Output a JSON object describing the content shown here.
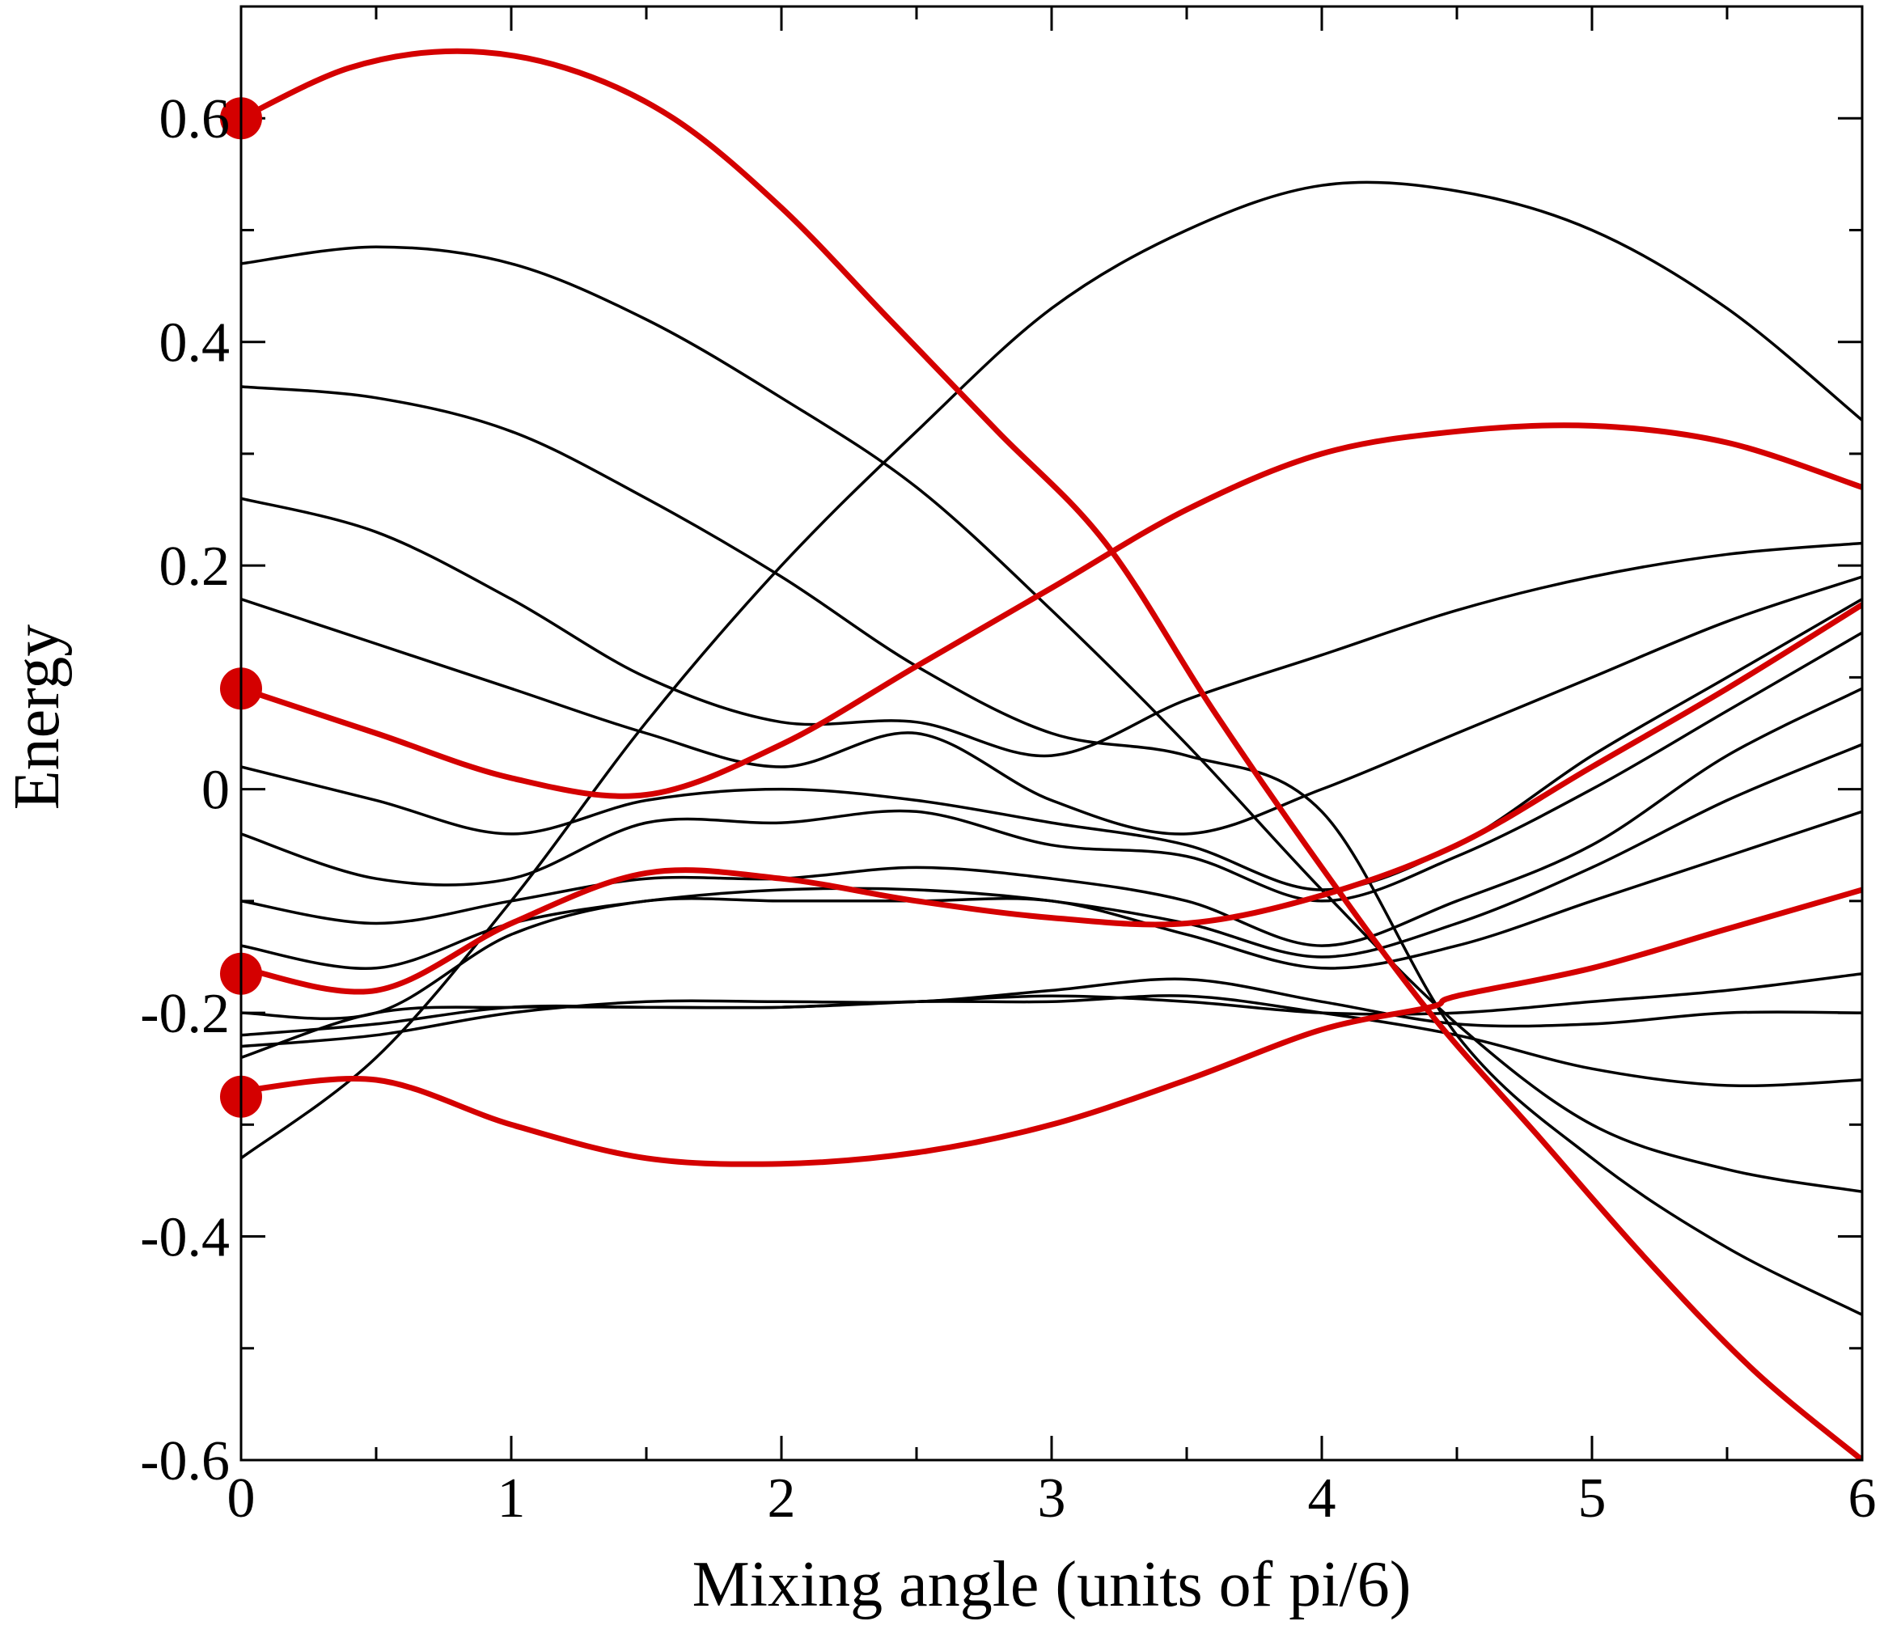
{
  "chart_data": {
    "type": "line",
    "xlabel": "Mixing angle (units of pi/6)",
    "ylabel": "Energy",
    "xlim": [
      0,
      6
    ],
    "ylim": [
      -0.6,
      0.7
    ],
    "x_ticks": [
      0,
      1,
      2,
      3,
      4,
      5,
      6
    ],
    "x_tick_labels": [
      "0",
      "1",
      "2",
      "3",
      "4",
      "5",
      "6"
    ],
    "y_ticks": [
      -0.6,
      -0.4,
      -0.2,
      0,
      0.2,
      0.4,
      0.6
    ],
    "y_tick_labels": [
      "-0.6",
      "-0.4",
      "-0.2",
      "0",
      "0.2",
      "0.4",
      "0.6"
    ],
    "grid": false,
    "colors": {
      "highlight": "#d40000",
      "other": "#000000"
    },
    "highlighted_series": [
      {
        "x": [
          0,
          0.4,
          0.8,
          1.2,
          1.6,
          2.0,
          2.4,
          2.8,
          3.2,
          3.6,
          4.0,
          4.4,
          4.8,
          5.2,
          5.6,
          6.0
        ],
        "y": [
          0.6,
          0.645,
          0.66,
          0.645,
          0.6,
          0.52,
          0.42,
          0.32,
          0.22,
          0.07,
          -0.07,
          -0.2,
          -0.31,
          -0.42,
          -0.52,
          -0.6
        ]
      },
      {
        "x": [
          0,
          0.5,
          1.0,
          1.5,
          2.0,
          2.5,
          3.0,
          3.5,
          4.0,
          4.5,
          5.0,
          5.5,
          6.0
        ],
        "y": [
          0.09,
          0.05,
          0.01,
          -0.005,
          0.04,
          0.11,
          0.18,
          0.25,
          0.3,
          0.32,
          0.325,
          0.31,
          0.27
        ]
      },
      {
        "x": [
          0,
          0.5,
          1.0,
          1.5,
          2.0,
          2.5,
          3.0,
          3.5,
          4.0,
          4.5,
          5.0,
          5.5,
          6.0
        ],
        "y": [
          -0.16,
          -0.18,
          -0.12,
          -0.075,
          -0.08,
          -0.1,
          -0.115,
          -0.12,
          -0.095,
          -0.05,
          0.02,
          0.09,
          0.165
        ]
      },
      {
        "x": [
          0,
          0.5,
          1.0,
          1.5,
          2.0,
          2.5,
          3.0,
          3.5,
          4.0,
          4.4,
          4.5,
          5.0,
          5.5,
          6.0
        ],
        "y": [
          -0.27,
          -0.26,
          -0.3,
          -0.33,
          -0.335,
          -0.325,
          -0.3,
          -0.26,
          -0.215,
          -0.195,
          -0.185,
          -0.16,
          -0.125,
          -0.09
        ]
      }
    ],
    "markers": [
      {
        "x": 0,
        "y": 0.6
      },
      {
        "x": 0,
        "y": 0.09
      },
      {
        "x": 0,
        "y": -0.165
      },
      {
        "x": 0,
        "y": -0.275
      }
    ],
    "other_series": [
      {
        "x": [
          0,
          0.5,
          1.0,
          1.5,
          2.0,
          2.5,
          3.0,
          3.5,
          4.0,
          4.5,
          5.0,
          5.5,
          6.0
        ],
        "y": [
          0.47,
          0.485,
          0.47,
          0.42,
          0.35,
          0.27,
          0.16,
          0.04,
          -0.09,
          -0.21,
          -0.3,
          -0.34,
          -0.36
        ]
      },
      {
        "x": [
          0,
          0.5,
          1.0,
          1.5,
          2.0,
          2.5,
          3.0,
          3.5,
          4.0,
          4.5,
          5.0,
          5.5,
          6.0
        ],
        "y": [
          0.36,
          0.35,
          0.32,
          0.26,
          0.19,
          0.11,
          0.05,
          0.03,
          -0.02,
          -0.22,
          -0.33,
          -0.41,
          -0.47
        ]
      },
      {
        "x": [
          0,
          0.5,
          1.0,
          1.5,
          2.0,
          2.5,
          3.0,
          3.5,
          4.0,
          4.5,
          5.0,
          5.5,
          6.0
        ],
        "y": [
          -0.33,
          -0.24,
          -0.1,
          0.06,
          0.2,
          0.32,
          0.43,
          0.5,
          0.54,
          0.535,
          0.5,
          0.43,
          0.33
        ]
      },
      {
        "x": [
          0,
          0.5,
          1.0,
          1.5,
          2.0,
          2.5,
          3.0,
          3.5,
          4.0,
          4.5,
          5.0,
          5.5,
          6.0
        ],
        "y": [
          0.26,
          0.23,
          0.17,
          0.1,
          0.06,
          0.06,
          0.03,
          0.08,
          0.12,
          0.16,
          0.19,
          0.21,
          0.22
        ]
      },
      {
        "x": [
          0,
          0.5,
          1.0,
          1.5,
          2.0,
          2.5,
          3.0,
          3.5,
          4.0,
          4.5,
          5.0,
          5.5,
          6.0
        ],
        "y": [
          0.17,
          0.13,
          0.09,
          0.05,
          0.02,
          0.05,
          -0.01,
          -0.04,
          0.0,
          0.05,
          0.1,
          0.15,
          0.19
        ]
      },
      {
        "x": [
          0,
          0.5,
          1.0,
          1.5,
          2.0,
          2.5,
          3.0,
          3.5,
          4.0,
          4.5,
          5.0,
          5.5,
          6.0
        ],
        "y": [
          0.02,
          -0.01,
          -0.04,
          -0.01,
          0.0,
          -0.01,
          -0.03,
          -0.05,
          -0.09,
          -0.05,
          0.03,
          0.1,
          0.17
        ]
      },
      {
        "x": [
          0,
          0.5,
          1.0,
          1.5,
          2.0,
          2.5,
          3.0,
          3.5,
          4.0,
          4.5,
          5.0,
          5.5,
          6.0
        ],
        "y": [
          -0.04,
          -0.08,
          -0.08,
          -0.03,
          -0.03,
          -0.02,
          -0.05,
          -0.06,
          -0.1,
          -0.06,
          0.0,
          0.07,
          0.14
        ]
      },
      {
        "x": [
          0,
          0.5,
          1.0,
          1.5,
          2.0,
          2.5,
          3.0,
          3.5,
          4.0,
          4.5,
          5.0,
          5.5,
          6.0
        ],
        "y": [
          -0.1,
          -0.12,
          -0.1,
          -0.08,
          -0.08,
          -0.07,
          -0.08,
          -0.1,
          -0.14,
          -0.1,
          -0.05,
          0.03,
          0.09
        ]
      },
      {
        "x": [
          0,
          0.5,
          1.0,
          1.5,
          2.0,
          2.5,
          3.0,
          3.5,
          4.0,
          4.5,
          5.0,
          5.5,
          6.0
        ],
        "y": [
          -0.14,
          -0.16,
          -0.12,
          -0.1,
          -0.09,
          -0.09,
          -0.1,
          -0.12,
          -0.15,
          -0.12,
          -0.07,
          -0.01,
          0.04
        ]
      },
      {
        "x": [
          0,
          0.5,
          1.0,
          1.5,
          2.0,
          2.5,
          3.0,
          3.5,
          4.0,
          4.5,
          5.0,
          5.5,
          6.0
        ],
        "y": [
          -0.2,
          -0.2,
          -0.13,
          -0.1,
          -0.1,
          -0.1,
          -0.1,
          -0.13,
          -0.16,
          -0.14,
          -0.1,
          -0.06,
          -0.02
        ]
      },
      {
        "x": [
          0,
          0.5,
          1.0,
          1.5,
          2.0,
          2.5,
          3.0,
          3.5,
          4.0,
          4.5,
          5.0,
          5.5,
          6.0
        ],
        "y": [
          -0.22,
          -0.21,
          -0.195,
          -0.195,
          -0.195,
          -0.19,
          -0.185,
          -0.19,
          -0.2,
          -0.2,
          -0.19,
          -0.18,
          -0.165
        ]
      },
      {
        "x": [
          0,
          0.5,
          1.0,
          1.5,
          2.0,
          2.5,
          3.0,
          3.5,
          4.0,
          4.5,
          5.0,
          5.5,
          6.0
        ],
        "y": [
          -0.23,
          -0.22,
          -0.2,
          -0.19,
          -0.19,
          -0.19,
          -0.18,
          -0.17,
          -0.19,
          -0.21,
          -0.21,
          -0.2,
          -0.2
        ]
      },
      {
        "x": [
          0,
          0.5,
          1.0,
          1.5,
          2.0,
          2.5,
          3.0,
          3.5,
          4.0,
          4.5,
          5.0,
          5.5,
          6.0
        ],
        "y": [
          -0.24,
          -0.2,
          -0.195,
          -0.195,
          -0.195,
          -0.19,
          -0.19,
          -0.185,
          -0.2,
          -0.22,
          -0.25,
          -0.265,
          -0.26
        ]
      }
    ]
  }
}
